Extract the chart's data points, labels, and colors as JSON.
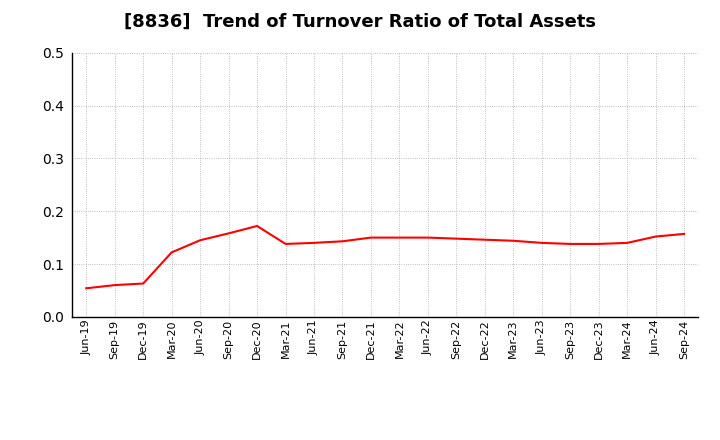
{
  "title": "[8836]  Trend of Turnover Ratio of Total Assets",
  "title_fontsize": 13,
  "line_color": "#FF0000",
  "line_width": 1.5,
  "background_color": "#FFFFFF",
  "grid_color": "#AAAAAA",
  "ylim": [
    0.0,
    0.5
  ],
  "yticks": [
    0.0,
    0.1,
    0.2,
    0.3,
    0.4,
    0.5
  ],
  "x_labels": [
    "Jun-19",
    "Sep-19",
    "Dec-19",
    "Mar-20",
    "Jun-20",
    "Sep-20",
    "Dec-20",
    "Mar-21",
    "Jun-21",
    "Sep-21",
    "Dec-21",
    "Mar-22",
    "Jun-22",
    "Sep-22",
    "Dec-22",
    "Mar-23",
    "Jun-23",
    "Sep-23",
    "Dec-23",
    "Mar-24",
    "Jun-24",
    "Sep-24"
  ],
  "values": [
    0.054,
    0.06,
    0.063,
    0.122,
    0.145,
    0.158,
    0.172,
    0.138,
    0.14,
    0.143,
    0.15,
    0.15,
    0.15,
    0.148,
    0.146,
    0.144,
    0.14,
    0.138,
    0.138,
    0.14,
    0.152,
    0.157
  ]
}
